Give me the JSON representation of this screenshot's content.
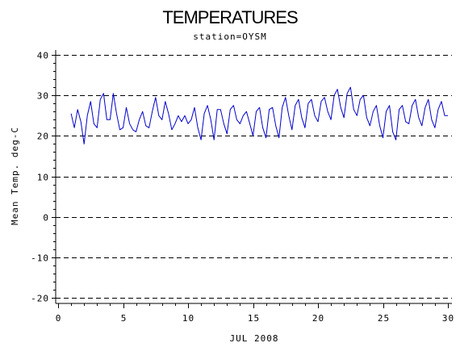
{
  "chart_data": {
    "type": "line",
    "title": "TEMPERATURES",
    "subtitle": "station=OYSM",
    "xlabel": "JUL 2008",
    "ylabel": "Mean Temp. deg-C",
    "xlim": [
      0,
      30
    ],
    "ylim": [
      -20,
      40
    ],
    "x_ticks": [
      0,
      5,
      10,
      15,
      20,
      25,
      30
    ],
    "y_ticks": [
      -20,
      -10,
      0,
      10,
      20,
      30,
      40
    ],
    "x_tick_labels": [
      "0",
      "5",
      "10",
      "15",
      "20",
      "25",
      "30"
    ],
    "y_tick_labels": [
      "-20",
      "-10",
      "0",
      "10",
      "20",
      "30",
      "40"
    ],
    "grid": "horizontal dashed at major y ticks",
    "legend": "none",
    "line_color": "#0000cc",
    "series": [
      {
        "x": [
          1.0,
          1.25,
          1.5,
          1.75,
          2.0,
          2.25,
          2.5,
          2.75,
          3.0,
          3.25,
          3.5,
          3.75,
          4.0,
          4.25,
          4.5,
          4.75,
          5.0,
          5.25,
          5.5,
          5.75,
          6.0,
          6.25,
          6.5,
          6.75,
          7.0,
          7.25,
          7.5,
          7.75,
          8.0,
          8.25,
          8.5,
          8.75,
          9.0,
          9.25,
          9.5,
          9.75,
          10.0,
          10.25,
          10.5,
          10.75,
          11.0,
          11.25,
          11.5,
          11.75,
          12.0,
          12.25,
          12.5,
          12.75,
          13.0,
          13.25,
          13.5,
          13.75,
          14.0,
          14.25,
          14.5,
          14.75,
          15.0,
          15.25,
          15.5,
          15.75,
          16.0,
          16.25,
          16.5,
          16.75,
          17.0,
          17.25,
          17.5,
          17.75,
          18.0,
          18.25,
          18.5,
          18.75,
          19.0,
          19.25,
          19.5,
          19.75,
          20.0,
          20.25,
          20.5,
          20.75,
          21.0,
          21.25,
          21.5,
          21.75,
          22.0,
          22.25,
          22.5,
          22.75,
          23.0,
          23.25,
          23.5,
          23.75,
          24.0,
          24.25,
          24.5,
          24.75,
          25.0,
          25.25,
          25.5,
          25.75,
          26.0,
          26.25,
          26.5,
          26.75,
          27.0,
          27.25,
          27.5,
          27.75,
          28.0,
          28.25,
          28.5,
          28.75,
          29.0,
          29.25,
          29.5,
          29.75,
          30.0
        ],
        "y": [
          25.5,
          22.0,
          26.5,
          23.5,
          18.0,
          25.0,
          28.5,
          23.0,
          22.0,
          29.0,
          30.5,
          24.0,
          24.0,
          30.5,
          25.5,
          21.5,
          22.0,
          27.0,
          23.0,
          21.5,
          21.0,
          24.0,
          26.0,
          22.5,
          22.0,
          26.0,
          29.5,
          25.0,
          24.0,
          28.5,
          25.5,
          21.5,
          23.0,
          25.0,
          23.5,
          25.0,
          23.0,
          24.0,
          27.0,
          22.0,
          19.0,
          25.5,
          27.5,
          24.0,
          19.0,
          26.5,
          26.5,
          23.0,
          20.5,
          26.5,
          27.5,
          24.0,
          23.0,
          25.0,
          26.0,
          23.0,
          20.0,
          26.0,
          27.0,
          22.0,
          19.5,
          26.5,
          27.0,
          22.5,
          19.5,
          27.0,
          29.5,
          25.0,
          21.5,
          27.5,
          29.0,
          24.5,
          22.0,
          28.0,
          29.0,
          25.0,
          23.5,
          28.5,
          29.5,
          26.0,
          24.0,
          30.0,
          31.5,
          27.0,
          24.5,
          30.5,
          32.0,
          26.5,
          25.0,
          29.0,
          30.0,
          24.5,
          22.5,
          26.0,
          27.5,
          22.5,
          19.5,
          26.0,
          27.5,
          21.0,
          19.0,
          26.5,
          27.5,
          23.5,
          23.0,
          27.5,
          29.0,
          24.5,
          22.5,
          27.0,
          29.0,
          24.0,
          22.0,
          26.5,
          28.5,
          25.0,
          25.0
        ]
      }
    ]
  }
}
